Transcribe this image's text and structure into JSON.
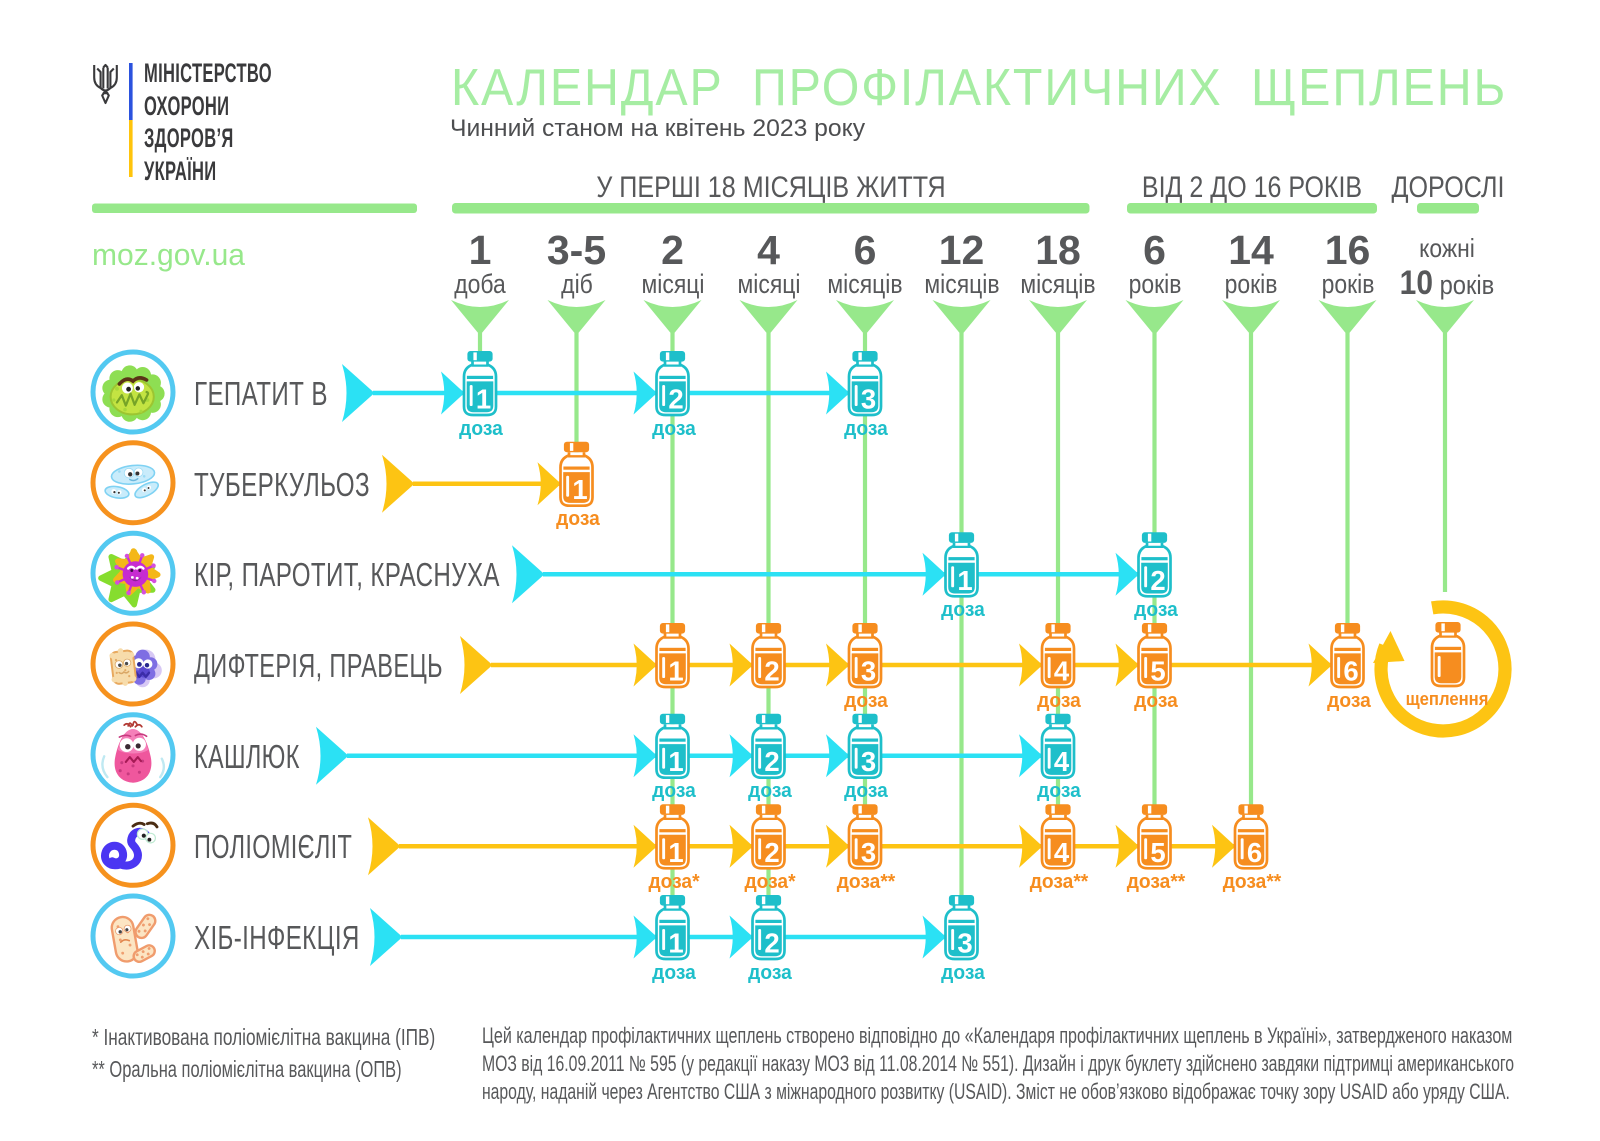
{
  "logo": {
    "ministry_lines": [
      "МІНІСТЕРСТВО",
      "ОХОРОНИ",
      "ЗДОРОВ’Я",
      "УКРАЇНИ"
    ],
    "website": "moz.gov.ua",
    "trident_icon": "trident-icon",
    "flag_blue": "#2b52de",
    "flag_yellow": "#ffc40c",
    "logo_dark": "#3a3a3c"
  },
  "header": {
    "title": "КАЛЕНДАР ПРОФІЛАКТИЧНИХ ЩЕПЛЕНЬ",
    "subtitle": "Чинний станом на квітень 2023 року"
  },
  "age_groups": [
    {
      "label": "У ПЕРШІ 18 МІСЯЦІВ ЖИТТЯ",
      "first_column": 0,
      "last_column": 6
    },
    {
      "label": "ВІД 2 ДО 16 РОКІВ",
      "first_column": 7,
      "last_column": 9
    },
    {
      "label": "ДОРОСЛІ",
      "first_column": 10,
      "last_column": 10
    }
  ],
  "columns": [
    {
      "value": "1",
      "unit": "доба"
    },
    {
      "value": "3-5",
      "unit": "діб"
    },
    {
      "value": "2",
      "unit": "місяці"
    },
    {
      "value": "4",
      "unit": "місяці"
    },
    {
      "value": "6",
      "unit": "місяців"
    },
    {
      "value": "12",
      "unit": "місяців"
    },
    {
      "value": "18",
      "unit": "місяців"
    },
    {
      "value": "6",
      "unit": "років"
    },
    {
      "value": "14",
      "unit": "років"
    },
    {
      "value": "16",
      "unit": "років"
    },
    {
      "prefix": "кожні",
      "value": "10",
      "unit": "років"
    }
  ],
  "rows": [
    {
      "disease": "ГЕПАТИТ В",
      "scheme": "cyan",
      "microbe": "hepatitis-virus-icon",
      "doses": [
        {
          "column": 0,
          "number": "1",
          "label": "доза"
        },
        {
          "column": 2,
          "number": "2",
          "label": "доза"
        },
        {
          "column": 4,
          "number": "3",
          "label": "доза"
        }
      ]
    },
    {
      "disease": "ТУБЕРКУЛЬОЗ",
      "scheme": "orange",
      "microbe": "tuberculosis-bacteria-icon",
      "doses": [
        {
          "column": 1,
          "number": "1",
          "label": "доза"
        }
      ]
    },
    {
      "disease": "КІР, ПАРОТИТ, КРАСНУХА",
      "scheme": "cyan",
      "microbe": "measles-virus-icon",
      "doses": [
        {
          "column": 5,
          "number": "1",
          "label": "доза"
        },
        {
          "column": 7,
          "number": "2",
          "label": "доза"
        }
      ]
    },
    {
      "disease": "ДИФТЕРІЯ, ПРАВЕЦЬ",
      "scheme": "orange",
      "microbe": "diphtheria-bacteria-icon",
      "doses": [
        {
          "column": 2,
          "number": "1",
          "label": ""
        },
        {
          "column": 3,
          "number": "2",
          "label": ""
        },
        {
          "column": 4,
          "number": "3",
          "label": "доза"
        },
        {
          "column": 6,
          "number": "4",
          "label": "доза"
        },
        {
          "column": 7,
          "number": "5",
          "label": "доза"
        },
        {
          "column": 9,
          "number": "6",
          "label": "доза"
        }
      ],
      "booster": {
        "column": 10,
        "label": "щеплення"
      }
    },
    {
      "disease": "КАШЛЮК",
      "scheme": "cyan",
      "microbe": "pertussis-bacteria-icon",
      "doses": [
        {
          "column": 2,
          "number": "1",
          "label": "доза"
        },
        {
          "column": 3,
          "number": "2",
          "label": "доза"
        },
        {
          "column": 4,
          "number": "3",
          "label": "доза"
        },
        {
          "column": 6,
          "number": "4",
          "label": "доза"
        }
      ]
    },
    {
      "disease": "ПОЛІОМІЄЛІТ",
      "scheme": "orange",
      "microbe": "polio-virus-icon",
      "doses": [
        {
          "column": 2,
          "number": "1",
          "label": "доза*"
        },
        {
          "column": 3,
          "number": "2",
          "label": "доза*"
        },
        {
          "column": 4,
          "number": "3",
          "label": "доза**"
        },
        {
          "column": 6,
          "number": "4",
          "label": "доза**"
        },
        {
          "column": 7,
          "number": "5",
          "label": "доза**"
        },
        {
          "column": 8,
          "number": "6",
          "label": "доза**"
        }
      ]
    },
    {
      "disease": "ХІБ-ІНФЕКЦІЯ",
      "scheme": "cyan",
      "microbe": "hib-bacteria-icon",
      "doses": [
        {
          "column": 2,
          "number": "1",
          "label": "доза"
        },
        {
          "column": 3,
          "number": "2",
          "label": "доза"
        },
        {
          "column": 5,
          "number": "3",
          "label": "доза"
        }
      ]
    }
  ],
  "footnotes": [
    "* Інактивована поліомієлітна вакцина (ІПВ)",
    "** Оральна поліомієлітна вакцина (ОПВ)"
  ],
  "footer": {
    "text": "Цей календар профілактичних щеплень створено відповідно до «Календаря профілактичних щеплень в Україні», затвердженого наказом\nМОЗ від 16.09.2011 № 595 (у редакції наказу МОЗ від 11.08.2014 № 551). Дизайн і друк буклету здійснено завдяки підтримці американського\nнароду, наданій через Агентство США з міжнародного розвитку (USAID). Зміст не обов’язково відображає точку зору USAID або уряду США."
  },
  "colors": {
    "green": "#97e88b",
    "green_title": "#a6eda3",
    "cyan_arrow": "#2be1f4",
    "cyan_vial": "#1ebfca",
    "cyan_ring": "#53c9f1",
    "orange_vial": "#f68d1f",
    "orange_ring": "#f6921e",
    "yellow_arrow": "#fdc413",
    "text_gray": "#57585a",
    "subtitle_gray": "#4d4e50"
  }
}
